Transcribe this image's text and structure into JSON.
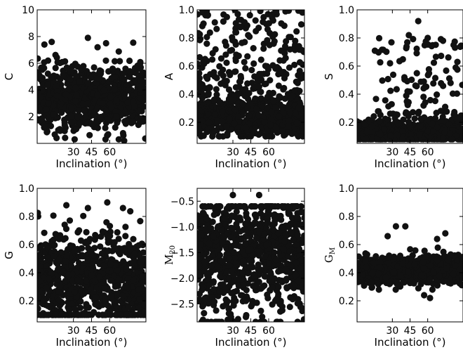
{
  "chart_data": [
    {
      "type": "scatter",
      "ylabel": "C",
      "xlabel": "Inclination (°)",
      "xlim": [
        0,
        90
      ],
      "ylim": [
        0,
        10
      ],
      "xticks": [
        30,
        45,
        60
      ],
      "yticks": [
        2,
        4,
        6,
        8,
        10
      ],
      "ytick_labels": [
        "2",
        "4",
        "6",
        "8",
        "10"
      ],
      "grid": false,
      "n_points": 800,
      "distribution": {
        "center": 3.4,
        "spread": 1.2,
        "min": 0.3,
        "max": 7.9
      },
      "seed": 11,
      "outliers": [
        {
          "x": 6,
          "y": 7.4
        },
        {
          "x": 12,
          "y": 7.6
        },
        {
          "x": 42,
          "y": 7.9
        },
        {
          "x": 57,
          "y": 7.5
        },
        {
          "x": 9,
          "y": 6.2
        },
        {
          "x": 50,
          "y": 7.2
        },
        {
          "x": 16,
          "y": 0.4
        },
        {
          "x": 31,
          "y": 0.3
        },
        {
          "x": 72,
          "y": 0.2
        }
      ]
    },
    {
      "type": "scatter",
      "ylabel": "A",
      "xlabel": "Inclination (°)",
      "xlim": [
        0,
        90
      ],
      "ylim": [
        0.05,
        1.0
      ],
      "xticks": [
        30,
        45,
        60
      ],
      "yticks": [
        0.2,
        0.4,
        0.6,
        0.8,
        1.0
      ],
      "ytick_labels": [
        "0.2",
        "0.4",
        "0.6",
        "0.8",
        "1.0"
      ],
      "grid": false,
      "n_points": 900,
      "distribution": {
        "center": 0.22,
        "spread": 0.06,
        "min": 0.1,
        "max": 1.0,
        "upper_fraction": 0.35,
        "upper_min": 0.3,
        "upper_max": 1.0
      },
      "seed": 23,
      "outliers": []
    },
    {
      "type": "scatter",
      "ylabel": "S",
      "xlabel": "Inclination (°)",
      "xlim": [
        0,
        90
      ],
      "ylim": [
        0.05,
        1.0
      ],
      "xticks": [
        30,
        45,
        60
      ],
      "yticks": [
        0.2,
        0.4,
        0.6,
        0.8,
        1.0
      ],
      "ytick_labels": [
        "0.2",
        "0.4",
        "0.6",
        "0.8",
        "1.0"
      ],
      "grid": false,
      "n_points": 850,
      "distribution": {
        "center": 0.13,
        "spread": 0.04,
        "min": 0.08,
        "max": 0.92,
        "upper_fraction": 0.16,
        "upper_min": 0.2,
        "upper_max": 0.8,
        "upper_xmin": 15
      },
      "seed": 37,
      "outliers": [
        {
          "x": 52,
          "y": 0.92
        },
        {
          "x": 44,
          "y": 0.82
        },
        {
          "x": 60,
          "y": 0.8
        },
        {
          "x": 82,
          "y": 0.75
        },
        {
          "x": 73,
          "y": 0.78
        },
        {
          "x": 28,
          "y": 0.62
        }
      ]
    },
    {
      "type": "scatter",
      "ylabel": "G",
      "xlabel": "Inclination (°)",
      "xlim": [
        0,
        90
      ],
      "ylim": [
        0.05,
        1.0
      ],
      "xticks": [
        30,
        45,
        60
      ],
      "yticks": [
        0.2,
        0.4,
        0.6,
        0.8,
        1.0
      ],
      "ytick_labels": [
        "0.2",
        "0.4",
        "0.6",
        "0.8",
        "1.0"
      ],
      "grid": false,
      "n_points": 900,
      "distribution": {
        "center": 0.35,
        "spread": 0.17,
        "min": 0.1,
        "max": 0.88
      },
      "seed": 51,
      "outliers": [
        {
          "x": 58,
          "y": 0.9
        },
        {
          "x": 42,
          "y": 0.86
        },
        {
          "x": 71,
          "y": 0.86
        }
      ]
    },
    {
      "type": "scatter",
      "ylabel": "M20",
      "xlabel": "Inclination (°)",
      "xlim": [
        0,
        90
      ],
      "ylim": [
        -2.85,
        -0.25
      ],
      "xticks": [
        30,
        45,
        60
      ],
      "yticks": [
        -2.5,
        -2.0,
        -1.5,
        -1.0,
        -0.5
      ],
      "ytick_labels": [
        "−2.5",
        "−2.0",
        "−1.5",
        "−1.0",
        "−0.5"
      ],
      "grid": false,
      "n_points": 950,
      "distribution": {
        "center": -1.5,
        "spread": 0.6,
        "min": -2.85,
        "max": -0.6
      },
      "seed": 67,
      "outliers": [
        {
          "x": 30,
          "y": -0.38
        },
        {
          "x": 52,
          "y": -0.38
        },
        {
          "x": 8,
          "y": -0.85
        }
      ]
    },
    {
      "type": "scatter",
      "ylabel": "GM",
      "xlabel": "Inclination (°)",
      "xlim": [
        0,
        90
      ],
      "ylim": [
        0.05,
        1.0
      ],
      "xticks": [
        30,
        45,
        60
      ],
      "yticks": [
        0.2,
        0.4,
        0.6,
        0.8,
        1.0
      ],
      "ytick_labels": [
        "0.2",
        "0.4",
        "0.6",
        "0.8",
        "1.0"
      ],
      "grid": false,
      "n_points": 900,
      "distribution": {
        "center": 0.42,
        "spread": 0.05,
        "min": 0.28,
        "max": 0.6
      },
      "seed": 79,
      "outliers": [
        {
          "x": 33,
          "y": 0.73
        },
        {
          "x": 41,
          "y": 0.73
        },
        {
          "x": 26,
          "y": 0.66
        },
        {
          "x": 75,
          "y": 0.68
        },
        {
          "x": 68,
          "y": 0.64
        },
        {
          "x": 57,
          "y": 0.24
        },
        {
          "x": 62,
          "y": 0.22
        }
      ]
    }
  ]
}
